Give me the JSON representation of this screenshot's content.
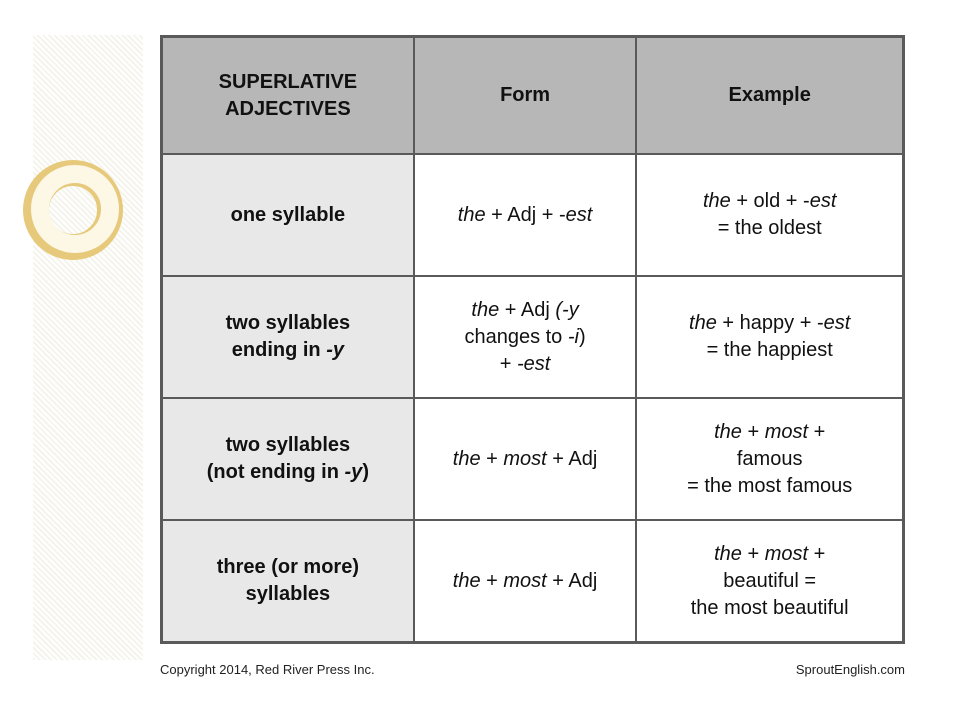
{
  "colors": {
    "header_bg": "#b7b7b7",
    "category_bg": "#e8e8e8",
    "border": "#5a5a5a",
    "page_bg": "#ffffff",
    "deco_ring": "#e6c97a",
    "deco_ring_inner": "#fdf7e6",
    "deco_pattern_a": "#f5f4ec",
    "deco_pattern_b": "#ffffff"
  },
  "table": {
    "headers": {
      "col1": "SUPERLATIVE ADJECTIVES",
      "col2": "Form",
      "col3": "Example"
    },
    "rows": [
      {
        "category_html": "one syllable",
        "form_html": "<i>the</i> + Adj + -<i>est</i>",
        "example_html": "<i>the</i> + old + -<i>est</i><br>= the oldest"
      },
      {
        "category_html": "two syllables<br>ending in <i>-y</i>",
        "form_html": "<i>the</i> + Adj <i>(-y</i><br>changes to <i>-i</i>)<br>+ <i>-est</i>",
        "example_html": "<i>the</i> + happy + -<i>est</i><br>= the happiest"
      },
      {
        "category_html": "two syllables<br>(not ending in <i>-y</i>)",
        "form_html": "<i>the</i> + <i>most</i> + Adj",
        "example_html": "<i>the</i> + <i>most</i> +<br>famous<br>= the most famous"
      },
      {
        "category_html": "three (or more)<br>syllables",
        "form_html": "<i>the</i> + <i>most</i> + Adj",
        "example_html": "<i>the</i> + <i>most</i> +<br>beautiful =<br>the most beautiful"
      }
    ]
  },
  "footer": {
    "left": "Copyright 2014, Red River Press Inc.",
    "right": "SproutEnglish.com"
  }
}
